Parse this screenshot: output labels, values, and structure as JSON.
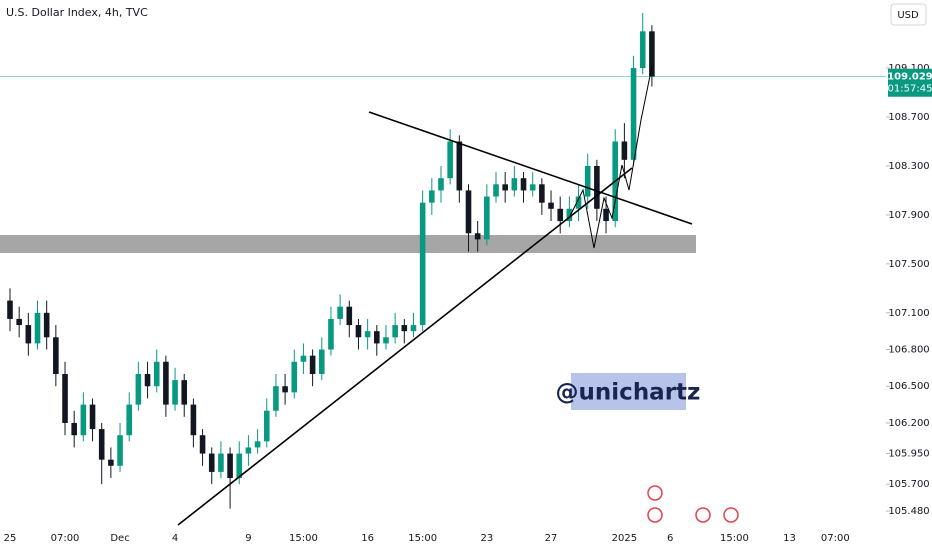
{
  "chart_data": {
    "type": "candlestick",
    "title": "U.S. Dollar Index, 4h, TVC",
    "currency": "USD",
    "watermark": "@unichartz",
    "last_price": 109.029,
    "countdown": "01:57:45",
    "up_color": "#089981",
    "down_color": "#131722",
    "ylim": [
      105.162,
      109.656
    ],
    "yticks": [
      {
        "value": 109.1,
        "label": "109.100"
      },
      {
        "value": 108.7,
        "label": "108.700"
      },
      {
        "value": 108.3,
        "label": "108.300"
      },
      {
        "value": 107.9,
        "label": "107.900"
      },
      {
        "value": 107.5,
        "label": "107.500"
      },
      {
        "value": 107.1,
        "label": "107.100"
      },
      {
        "value": 106.8,
        "label": "106.800"
      },
      {
        "value": 106.5,
        "label": "106.500"
      },
      {
        "value": 106.2,
        "label": "106.200"
      },
      {
        "value": 105.95,
        "label": "105.950"
      },
      {
        "value": 105.7,
        "label": "105.700"
      },
      {
        "value": 105.48,
        "label": "105.480"
      }
    ],
    "categories": [
      "25",
      null,
      null,
      null,
      null,
      null,
      "07:00",
      null,
      null,
      null,
      null,
      null,
      "Dec",
      null,
      null,
      null,
      null,
      null,
      "4",
      null,
      null,
      null,
      null,
      null,
      null,
      null,
      "9",
      null,
      null,
      null,
      null,
      null,
      "15:00",
      null,
      null,
      null,
      null,
      null,
      null,
      "16",
      null,
      null,
      null,
      null,
      null,
      "15:00",
      null,
      null,
      null,
      null,
      null,
      null,
      "23",
      null,
      null,
      null,
      null,
      null,
      null,
      "27",
      null,
      null,
      null,
      null,
      null,
      null,
      null,
      "2025",
      null,
      null,
      null,
      null,
      "6",
      null,
      null,
      null,
      null,
      null,
      null,
      "15:00",
      null,
      null,
      null,
      null,
      null,
      "13",
      null,
      null,
      null,
      null,
      "07:00",
      null
    ],
    "open": [
      107.2,
      107.05,
      107.0,
      106.85,
      107.1,
      106.9,
      106.6,
      106.2,
      106.1,
      106.35,
      106.15,
      105.9,
      105.85,
      106.1,
      106.35,
      106.6,
      106.5,
      106.7,
      106.35,
      106.55,
      106.35,
      106.1,
      105.95,
      105.8,
      105.95,
      105.75,
      105.95,
      106.0,
      106.05,
      106.3,
      106.5,
      106.45,
      106.7,
      106.75,
      106.6,
      106.8,
      107.05,
      107.15,
      107.0,
      106.9,
      106.95,
      106.85,
      106.9,
      107.0,
      106.95,
      107.0,
      108.0,
      108.1,
      108.2,
      108.5,
      108.1,
      107.75,
      107.7,
      108.05,
      108.15,
      108.1,
      108.2,
      108.1,
      108.15,
      108.0,
      107.95,
      107.85,
      107.95,
      108.05,
      108.3,
      107.95,
      107.85,
      108.5,
      108.35,
      109.1,
      109.4,
      null,
      null,
      null,
      null,
      null,
      null,
      null,
      null,
      null,
      null,
      null,
      null,
      null,
      null,
      null,
      null,
      null,
      null,
      null,
      null,
      null
    ],
    "high": [
      107.3,
      107.15,
      107.1,
      107.2,
      107.2,
      107.0,
      106.7,
      106.3,
      106.45,
      106.4,
      106.2,
      106.0,
      106.2,
      106.45,
      106.7,
      106.7,
      106.8,
      106.75,
      106.65,
      106.6,
      106.4,
      106.15,
      106.0,
      106.05,
      106.0,
      106.05,
      106.1,
      106.15,
      106.4,
      106.6,
      106.6,
      106.8,
      106.85,
      106.8,
      106.9,
      107.15,
      107.25,
      107.2,
      107.05,
      107.05,
      107.0,
      107.0,
      107.1,
      107.05,
      107.1,
      108.1,
      108.2,
      108.3,
      108.6,
      108.55,
      108.15,
      107.85,
      108.15,
      108.25,
      108.25,
      108.3,
      108.25,
      108.25,
      108.2,
      108.1,
      108.05,
      108.05,
      108.15,
      108.4,
      108.35,
      108.05,
      108.6,
      108.65,
      109.2,
      109.55,
      109.45,
      null,
      null,
      null,
      null,
      null,
      null,
      null,
      null,
      null,
      null,
      null,
      null,
      null,
      null,
      null,
      null,
      null,
      null,
      null,
      null,
      null
    ],
    "low": [
      106.95,
      106.9,
      106.75,
      106.8,
      106.8,
      106.5,
      106.1,
      106.0,
      106.05,
      106.05,
      105.7,
      105.75,
      105.8,
      106.05,
      106.3,
      106.4,
      106.45,
      106.25,
      106.3,
      106.25,
      106.0,
      105.85,
      105.7,
      105.75,
      105.5,
      105.7,
      105.85,
      105.95,
      106.0,
      106.25,
      106.35,
      106.4,
      106.6,
      106.5,
      106.55,
      106.75,
      107.0,
      106.9,
      106.8,
      106.8,
      106.75,
      106.8,
      106.85,
      106.85,
      106.9,
      106.95,
      107.9,
      108.0,
      108.15,
      108.0,
      107.6,
      107.6,
      107.65,
      108.0,
      108.0,
      108.05,
      108.0,
      108.05,
      107.9,
      107.85,
      107.75,
      107.8,
      107.85,
      107.95,
      107.85,
      107.75,
      107.8,
      108.2,
      108.3,
      109.05,
      108.95,
      null,
      null,
      null,
      null,
      null,
      null,
      null,
      null,
      null,
      null,
      null,
      null,
      null,
      null,
      null,
      null,
      null,
      null,
      null,
      null,
      null
    ],
    "close": [
      107.05,
      107.0,
      106.85,
      107.1,
      106.9,
      106.6,
      106.2,
      106.1,
      106.35,
      106.15,
      105.9,
      105.85,
      106.1,
      106.35,
      106.6,
      106.5,
      106.7,
      106.35,
      106.55,
      106.35,
      106.1,
      105.95,
      105.8,
      105.95,
      105.75,
      105.95,
      106.0,
      106.05,
      106.3,
      106.5,
      106.45,
      106.7,
      106.75,
      106.6,
      106.8,
      107.05,
      107.15,
      107.0,
      106.9,
      106.95,
      106.85,
      106.9,
      107.0,
      106.95,
      107.0,
      108.0,
      108.1,
      108.2,
      108.5,
      108.1,
      107.75,
      107.7,
      108.05,
      108.15,
      108.1,
      108.2,
      108.1,
      108.15,
      108.0,
      107.95,
      107.85,
      107.95,
      108.05,
      108.3,
      107.95,
      107.85,
      108.5,
      108.35,
      109.1,
      109.4,
      109.03,
      null,
      null,
      null,
      null,
      null,
      null,
      null,
      null,
      null,
      null,
      null,
      null,
      null,
      null,
      null,
      null,
      null,
      null,
      null,
      null,
      null
    ]
  }
}
